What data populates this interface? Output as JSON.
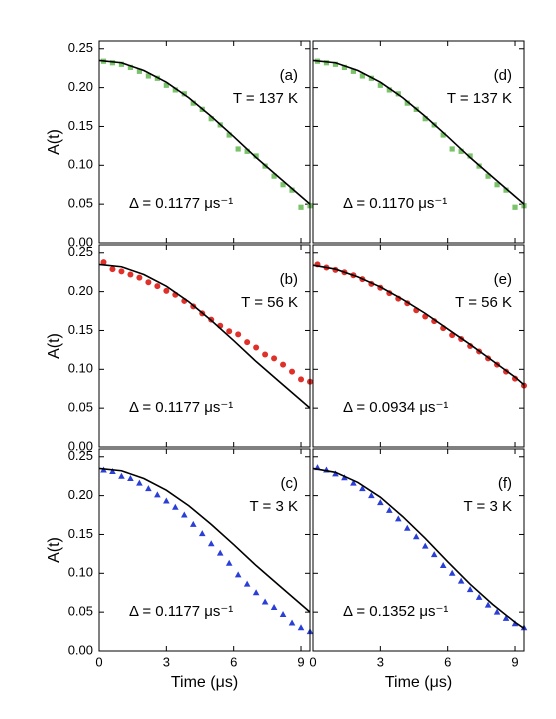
{
  "chart_data": [
    {
      "type": "scatter",
      "panel_label": "(a)",
      "annotations": [
        "T = 137 K",
        "Δ = 0.1177 μs⁻¹"
      ],
      "ylabel": "A(t)",
      "xlim": [
        0,
        9.4
      ],
      "ylim": [
        0,
        0.26
      ],
      "xticks": [
        0,
        3,
        6,
        9
      ],
      "yticks": [
        {
          "value": 0,
          "label": "0.00"
        },
        {
          "value": 0.05,
          "label": "0.05"
        },
        {
          "value": 0.1,
          "label": "0.10"
        },
        {
          "value": 0.15,
          "label": "0.15"
        },
        {
          "value": 0.2,
          "label": "0.20"
        },
        {
          "value": 0.25,
          "label": "0.25"
        }
      ],
      "series": [
        {
          "mode": "markers",
          "marker": "square",
          "color": "#7ac36a",
          "x": [
            0.2,
            0.6,
            1.0,
            1.4,
            1.8,
            2.2,
            2.6,
            3.0,
            3.4,
            3.8,
            4.2,
            4.6,
            5.0,
            5.4,
            5.8,
            6.2,
            6.6,
            7.0,
            7.4,
            7.8,
            8.2,
            8.6,
            9.0,
            9.4
          ],
          "values": [
            0.234,
            0.232,
            0.23,
            0.226,
            0.221,
            0.215,
            0.212,
            0.203,
            0.197,
            0.192,
            0.18,
            0.172,
            0.16,
            0.152,
            0.139,
            0.121,
            0.118,
            0.112,
            0.099,
            0.086,
            0.075,
            0.068,
            0.046,
            0.048
          ]
        },
        {
          "mode": "line",
          "color": "#000000",
          "x": [
            0,
            1,
            2,
            3,
            4,
            5,
            6,
            7,
            8,
            9,
            9.4
          ],
          "values": [
            0.235,
            0.232,
            0.222,
            0.207,
            0.187,
            0.163,
            0.137,
            0.11,
            0.085,
            0.06,
            0.05
          ]
        }
      ]
    },
    {
      "type": "scatter",
      "panel_label": "(d)",
      "annotations": [
        "T = 137 K",
        "Δ = 0.1170 μs⁻¹"
      ],
      "xlim": [
        0,
        9.4
      ],
      "ylim": [
        0,
        0.26
      ],
      "xticks": [
        0,
        3,
        6,
        9
      ],
      "yticks": [
        0,
        0.05,
        0.1,
        0.15,
        0.2,
        0.25
      ],
      "series": [
        {
          "mode": "markers",
          "marker": "square",
          "color": "#7ac36a",
          "x": [
            0.2,
            0.6,
            1.0,
            1.4,
            1.8,
            2.2,
            2.6,
            3.0,
            3.4,
            3.8,
            4.2,
            4.6,
            5.0,
            5.4,
            5.8,
            6.2,
            6.6,
            7.0,
            7.4,
            7.8,
            8.2,
            8.6,
            9.0,
            9.4
          ],
          "values": [
            0.234,
            0.232,
            0.23,
            0.226,
            0.221,
            0.215,
            0.212,
            0.203,
            0.197,
            0.192,
            0.18,
            0.172,
            0.16,
            0.152,
            0.139,
            0.121,
            0.118,
            0.112,
            0.099,
            0.086,
            0.075,
            0.068,
            0.046,
            0.048
          ]
        },
        {
          "mode": "line",
          "color": "#000000",
          "x": [
            0,
            1,
            2,
            3,
            4,
            5,
            6,
            7,
            8,
            9,
            9.4
          ],
          "values": [
            0.235,
            0.232,
            0.222,
            0.207,
            0.187,
            0.163,
            0.137,
            0.11,
            0.085,
            0.06,
            0.05
          ]
        }
      ]
    },
    {
      "type": "scatter",
      "panel_label": "(b)",
      "annotations": [
        "T = 56 K",
        "Δ = 0.1177 μs⁻¹"
      ],
      "ylabel": "A(t)",
      "xlim": [
        0,
        9.4
      ],
      "ylim": [
        0,
        0.26
      ],
      "xticks": [
        0,
        3,
        6,
        9
      ],
      "yticks": [
        {
          "value": 0,
          "label": "0.00"
        },
        {
          "value": 0.05,
          "label": "0.05"
        },
        {
          "value": 0.1,
          "label": "0.10"
        },
        {
          "value": 0.15,
          "label": "0.15"
        },
        {
          "value": 0.2,
          "label": "0.20"
        },
        {
          "value": 0.25,
          "label": "0.25"
        }
      ],
      "series": [
        {
          "mode": "markers",
          "marker": "circle",
          "color": "#e0302a",
          "x": [
            0.2,
            0.6,
            1.0,
            1.4,
            1.8,
            2.2,
            2.6,
            3.0,
            3.4,
            3.8,
            4.2,
            4.6,
            5.0,
            5.4,
            5.8,
            6.2,
            6.6,
            7.0,
            7.4,
            7.8,
            8.2,
            8.6,
            9.0,
            9.4
          ],
          "values": [
            0.238,
            0.229,
            0.226,
            0.222,
            0.218,
            0.212,
            0.207,
            0.201,
            0.196,
            0.188,
            0.181,
            0.172,
            0.164,
            0.156,
            0.149,
            0.145,
            0.135,
            0.128,
            0.119,
            0.114,
            0.106,
            0.097,
            0.087,
            0.084
          ]
        },
        {
          "mode": "line",
          "color": "#000000",
          "x": [
            0,
            1,
            2,
            3,
            4,
            5,
            6,
            7,
            8,
            9,
            9.4
          ],
          "values": [
            0.235,
            0.232,
            0.222,
            0.207,
            0.187,
            0.163,
            0.137,
            0.11,
            0.085,
            0.06,
            0.05
          ]
        }
      ]
    },
    {
      "type": "scatter",
      "panel_label": "(e)",
      "annotations": [
        "T = 56 K",
        "Δ = 0.0934 μs⁻¹"
      ],
      "xlim": [
        0,
        9.4
      ],
      "ylim": [
        0,
        0.26
      ],
      "xticks": [
        0,
        3,
        6,
        9
      ],
      "yticks": [
        0,
        0.05,
        0.1,
        0.15,
        0.2,
        0.25
      ],
      "series": [
        {
          "mode": "markers",
          "marker": "circle",
          "color": "#e0302a",
          "x": [
            0.2,
            0.6,
            1.0,
            1.4,
            1.8,
            2.2,
            2.6,
            3.0,
            3.4,
            3.8,
            4.2,
            4.6,
            5.0,
            5.4,
            5.8,
            6.2,
            6.6,
            7.0,
            7.4,
            7.8,
            8.2,
            8.6,
            9.0,
            9.4
          ],
          "values": [
            0.235,
            0.231,
            0.228,
            0.225,
            0.221,
            0.216,
            0.21,
            0.205,
            0.198,
            0.191,
            0.185,
            0.176,
            0.168,
            0.162,
            0.153,
            0.144,
            0.139,
            0.13,
            0.123,
            0.114,
            0.106,
            0.097,
            0.088,
            0.079
          ]
        },
        {
          "mode": "line",
          "color": "#000000",
          "x": [
            0,
            1,
            2,
            3,
            4,
            5,
            6,
            7,
            8,
            9,
            9.4
          ],
          "values": [
            0.234,
            0.229,
            0.219,
            0.206,
            0.19,
            0.172,
            0.152,
            0.132,
            0.111,
            0.09,
            0.08
          ]
        }
      ]
    },
    {
      "type": "scatter",
      "panel_label": "(c)",
      "annotations": [
        "T = 3 K",
        "Δ = 0.1177 μs⁻¹"
      ],
      "ylabel": "A(t)",
      "xlabel": "Time (μs)",
      "xlim": [
        0,
        9.4
      ],
      "ylim": [
        0,
        0.26
      ],
      "xticks": [
        0,
        3,
        6,
        9
      ],
      "yticks": [
        {
          "value": 0,
          "label": "0.00"
        },
        {
          "value": 0.05,
          "label": "0.05"
        },
        {
          "value": 0.1,
          "label": "0.10"
        },
        {
          "value": 0.15,
          "label": "0.15"
        },
        {
          "value": 0.2,
          "label": "0.20"
        },
        {
          "value": 0.25,
          "label": "0.25"
        }
      ],
      "series": [
        {
          "mode": "markers",
          "marker": "triangle",
          "color": "#2a3fd6",
          "x": [
            0.2,
            0.6,
            1.0,
            1.4,
            1.8,
            2.2,
            2.6,
            3.0,
            3.4,
            3.8,
            4.2,
            4.6,
            5.0,
            5.4,
            5.8,
            6.2,
            6.6,
            7.0,
            7.4,
            7.8,
            8.2,
            8.6,
            9.0,
            9.4
          ],
          "values": [
            0.233,
            0.231,
            0.225,
            0.222,
            0.216,
            0.209,
            0.201,
            0.193,
            0.185,
            0.175,
            0.163,
            0.151,
            0.138,
            0.126,
            0.113,
            0.098,
            0.086,
            0.075,
            0.063,
            0.056,
            0.047,
            0.036,
            0.03,
            0.025
          ]
        },
        {
          "mode": "line",
          "color": "#000000",
          "x": [
            0,
            1,
            2,
            3,
            4,
            5,
            6,
            7,
            8,
            9,
            9.4
          ],
          "values": [
            0.235,
            0.232,
            0.222,
            0.207,
            0.187,
            0.163,
            0.137,
            0.11,
            0.085,
            0.06,
            0.05
          ]
        }
      ]
    },
    {
      "type": "scatter",
      "panel_label": "(f)",
      "annotations": [
        "T = 3 K",
        "Δ = 0.1352 μs⁻¹"
      ],
      "xlabel": "Time (μs)",
      "xlim": [
        0,
        9.4
      ],
      "ylim": [
        0,
        0.26
      ],
      "xticks": [
        0,
        3,
        6,
        9
      ],
      "yticks": [
        0,
        0.05,
        0.1,
        0.15,
        0.2,
        0.25
      ],
      "series": [
        {
          "mode": "markers",
          "marker": "triangle",
          "color": "#2a3fd6",
          "x": [
            0.2,
            0.6,
            1.0,
            1.4,
            1.8,
            2.2,
            2.6,
            3.0,
            3.4,
            3.8,
            4.2,
            4.6,
            5.0,
            5.4,
            5.8,
            6.2,
            6.6,
            7.0,
            7.4,
            7.8,
            8.2,
            8.6,
            9.0,
            9.4
          ],
          "values": [
            0.236,
            0.233,
            0.228,
            0.223,
            0.216,
            0.209,
            0.2,
            0.191,
            0.181,
            0.17,
            0.158,
            0.147,
            0.135,
            0.124,
            0.11,
            0.1,
            0.09,
            0.079,
            0.069,
            0.059,
            0.05,
            0.042,
            0.035,
            0.03
          ]
        },
        {
          "mode": "line",
          "color": "#000000",
          "x": [
            0,
            1,
            2,
            3,
            4,
            5,
            6,
            7,
            8,
            9,
            9.4
          ],
          "values": [
            0.235,
            0.23,
            0.217,
            0.198,
            0.173,
            0.145,
            0.115,
            0.086,
            0.06,
            0.037,
            0.029
          ]
        }
      ]
    }
  ]
}
